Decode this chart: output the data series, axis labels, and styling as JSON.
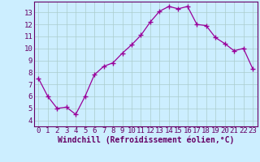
{
  "x": [
    0,
    1,
    2,
    3,
    4,
    5,
    6,
    7,
    8,
    9,
    10,
    11,
    12,
    13,
    14,
    15,
    16,
    17,
    18,
    19,
    20,
    21,
    22,
    23
  ],
  "y": [
    7.5,
    6.0,
    5.0,
    5.1,
    4.5,
    6.0,
    7.8,
    8.5,
    8.8,
    9.6,
    10.3,
    11.1,
    12.2,
    13.1,
    13.5,
    13.3,
    13.5,
    12.0,
    11.9,
    10.9,
    10.4,
    9.8,
    10.0,
    8.3
  ],
  "line_color": "#990099",
  "marker": "+",
  "marker_size": 4,
  "bg_color": "#cceeff",
  "grid_color": "#aacccc",
  "xlabel": "Windchill (Refroidissement éolien,°C)",
  "xlabel_color": "#660066",
  "tick_color": "#660066",
  "xlim": [
    -0.5,
    23.5
  ],
  "ylim": [
    3.5,
    13.9
  ],
  "yticks": [
    4,
    5,
    6,
    7,
    8,
    9,
    10,
    11,
    12,
    13
  ],
  "xticks": [
    0,
    1,
    2,
    3,
    4,
    5,
    6,
    7,
    8,
    9,
    10,
    11,
    12,
    13,
    14,
    15,
    16,
    17,
    18,
    19,
    20,
    21,
    22,
    23
  ],
  "font_size": 6.5,
  "xlabel_size": 7,
  "line_width": 0.9
}
